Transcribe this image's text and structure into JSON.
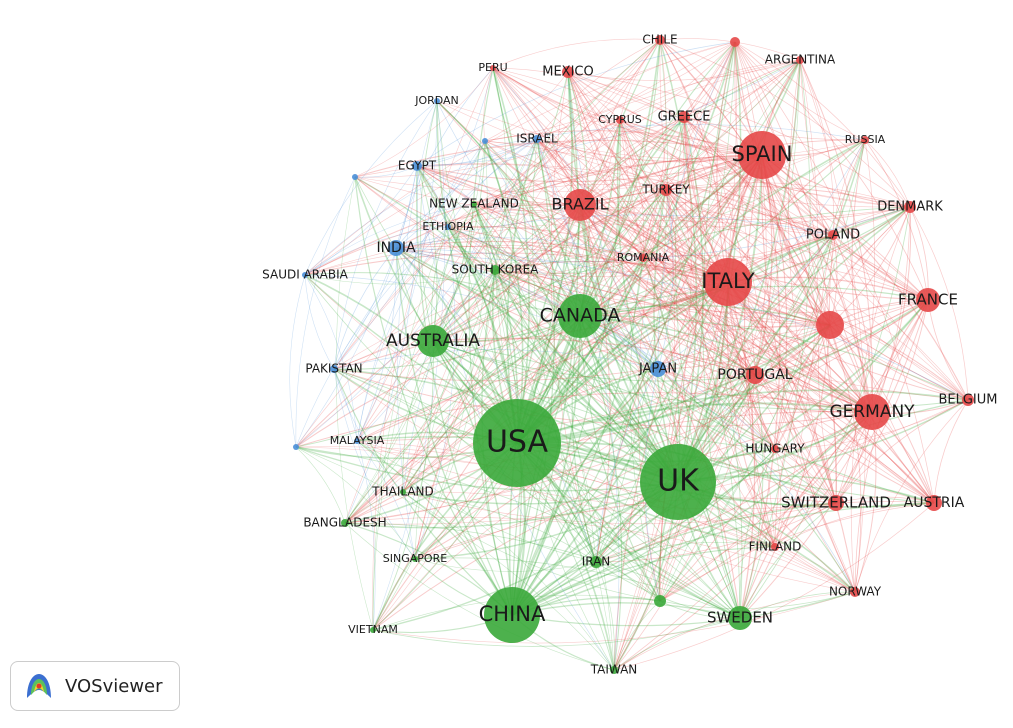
{
  "clusters": [
    {
      "color": "#e54848"
    },
    {
      "color": "#4a8fd8"
    },
    {
      "color": "#3aa83a"
    }
  ],
  "nodes": [
    {
      "label": "CHILE",
      "cluster": 0
    },
    {
      "label": "ARGENTINA",
      "cluster": 0
    },
    {
      "label": "PERU",
      "cluster": 0
    },
    {
      "label": "MEXICO",
      "cluster": 0
    },
    {
      "label": "CYPRUS",
      "cluster": 0
    },
    {
      "label": "GREECE",
      "cluster": 0
    },
    {
      "label": "SPAIN",
      "cluster": 0
    },
    {
      "label": "RUSSIA",
      "cluster": 0
    },
    {
      "label": "TURKEY",
      "cluster": 0
    },
    {
      "label": "BRAZIL",
      "cluster": 0
    },
    {
      "label": "DENMARK",
      "cluster": 0
    },
    {
      "label": "POLAND",
      "cluster": 0
    },
    {
      "label": "ROMANIA",
      "cluster": 0
    },
    {
      "label": "ITALY",
      "cluster": 0
    },
    {
      "label": "FRANCE",
      "cluster": 0
    },
    {
      "label": "PORTUGAL",
      "cluster": 0
    },
    {
      "label": "GERMANY",
      "cluster": 0
    },
    {
      "label": "BELGIUM",
      "cluster": 0
    },
    {
      "label": "HUNGARY",
      "cluster": 0
    },
    {
      "label": "SWITZERLAND",
      "cluster": 0
    },
    {
      "label": "AUSTRIA",
      "cluster": 0
    },
    {
      "label": "FINLAND",
      "cluster": 0
    },
    {
      "label": "NORWAY",
      "cluster": 0
    },
    {
      "label": "JORDAN",
      "cluster": 1
    },
    {
      "label": "ISRAEL",
      "cluster": 1
    },
    {
      "label": "EGYPT",
      "cluster": 1
    },
    {
      "label": "ETHIOPIA",
      "cluster": 1
    },
    {
      "label": "INDIA",
      "cluster": 1
    },
    {
      "label": "SAUDI ARABIA",
      "cluster": 1
    },
    {
      "label": "PAKISTAN",
      "cluster": 1
    },
    {
      "label": "MALAYSIA",
      "cluster": 1
    },
    {
      "label": "JAPAN",
      "cluster": 1
    },
    {
      "label": "NEW ZEALAND",
      "cluster": 2
    },
    {
      "label": "SOUTH KOREA",
      "cluster": 2
    },
    {
      "label": "CANADA",
      "cluster": 2
    },
    {
      "label": "AUSTRALIA",
      "cluster": 2
    },
    {
      "label": "USA",
      "cluster": 2
    },
    {
      "label": "UK",
      "cluster": 2
    },
    {
      "label": "THAILAND",
      "cluster": 2
    },
    {
      "label": "BANGLADESH",
      "cluster": 2
    },
    {
      "label": "SINGAPORE",
      "cluster": 2
    },
    {
      "label": "IRAN",
      "cluster": 2
    },
    {
      "label": "CHINA",
      "cluster": 2
    },
    {
      "label": "SWEDEN",
      "cluster": 2
    },
    {
      "label": "VIETNAM",
      "cluster": 2
    },
    {
      "label": "TAIWAN",
      "cluster": 2
    }
  ],
  "logo": {
    "text": "VOSviewer"
  }
}
